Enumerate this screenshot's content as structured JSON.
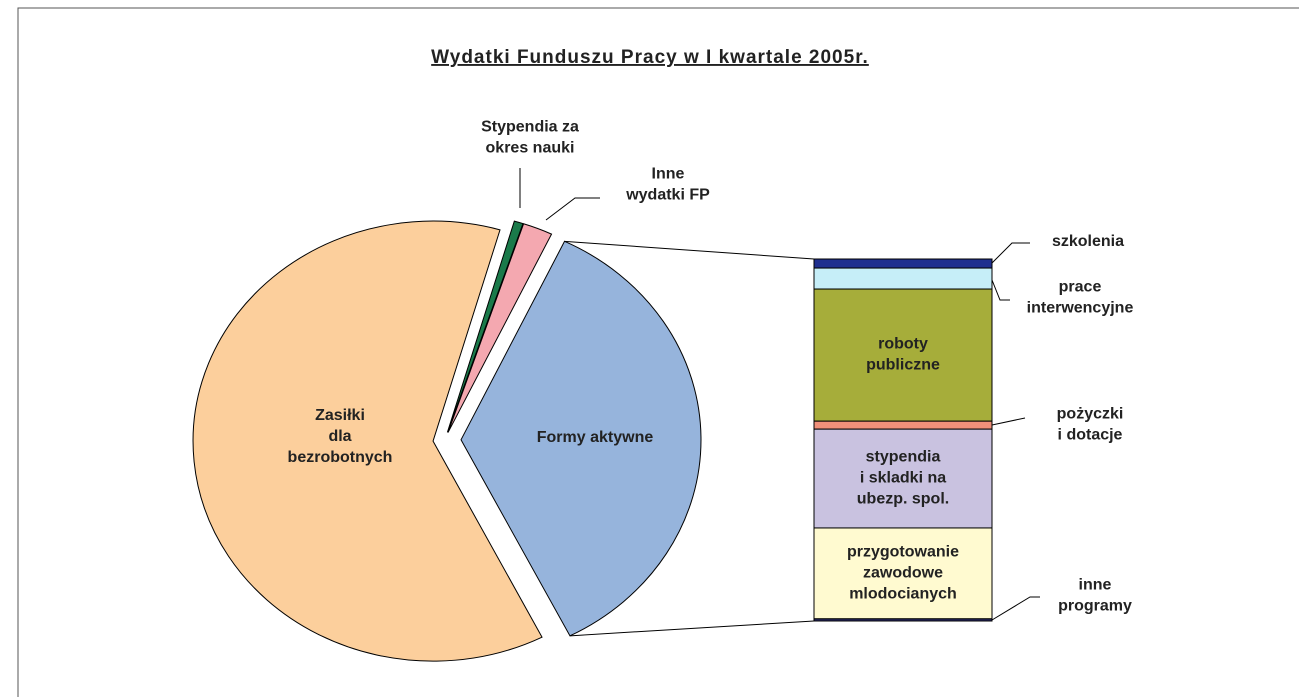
{
  "chart_data": {
    "type": "pie-of-bar",
    "title": "Wydatki Funduszu Pracy w I kwartale 2005r.",
    "categories": [
      "Zasiłki\ndla\nbezrobotnych",
      "Stypendia za\nokres nauki",
      "Inne\nwydatki FP",
      "Formy aktywne"
    ],
    "values": [
      62,
      0.6,
      2,
      35.4
    ],
    "colors": [
      "#fccf9c",
      "#1a7a4a",
      "#f4a8b0",
      "#96b4dc"
    ],
    "bar_categories": [
      "szkolenia",
      "prace\ninterwencyjne",
      "roboty\npubliczne",
      "pożyczki\ni dotacje",
      "stypendia\ni skladki na\nubezp. spol.",
      "przygotowanie\nzawodowe\nmlodocianych",
      "inne\nprogramy"
    ],
    "bar_values": [
      2.5,
      5.8,
      36.5,
      2.2,
      27.3,
      25.1,
      0.6
    ],
    "bar_colors": [
      "#1f2f8f",
      "#c6eef8",
      "#a6ad3a",
      "#f0907a",
      "#c9c2e0",
      "#fffad0",
      "#2a2a6a"
    ]
  }
}
